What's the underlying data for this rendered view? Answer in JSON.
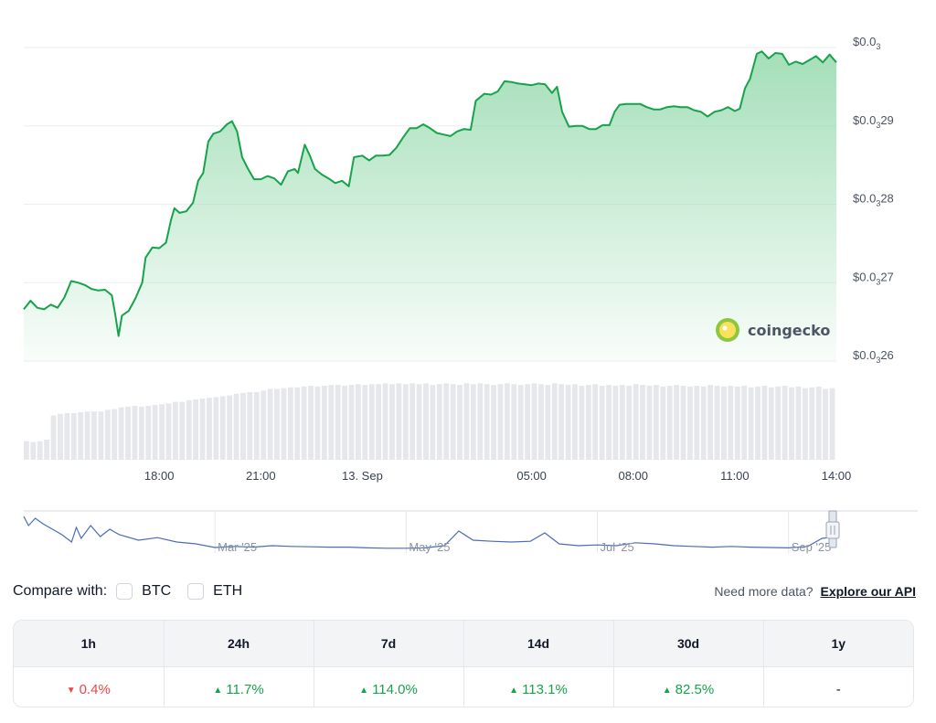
{
  "chart_data": {
    "type": "area",
    "y_ticks": [
      {
        "value": 0.0026,
        "label": "$0.0",
        "zeros": "3",
        "tail": "26"
      },
      {
        "value": 0.0027,
        "label": "$0.0",
        "zeros": "3",
        "tail": "27"
      },
      {
        "value": 0.0028,
        "label": "$0.0",
        "zeros": "3",
        "tail": "28"
      },
      {
        "value": 0.0029,
        "label": "$0.0",
        "zeros": "3",
        "tail": "29"
      },
      {
        "value": 0.003,
        "label": "$0.0",
        "zeros": "3",
        "tail": ""
      }
    ],
    "ylim": [
      0.0026,
      0.003
    ],
    "xlim": [
      0,
      24
    ],
    "x_ticks": [
      {
        "value": 4,
        "label": "18:00"
      },
      {
        "value": 7,
        "label": "21:00"
      },
      {
        "value": 10,
        "label": "13. Sep"
      },
      {
        "value": 15,
        "label": "05:00"
      },
      {
        "value": 18,
        "label": "08:00"
      },
      {
        "value": 21,
        "label": "11:00"
      },
      {
        "value": 24,
        "label": "14:00"
      }
    ],
    "price_series": [
      [
        0.0,
        0.002666
      ],
      [
        0.2,
        0.002677
      ],
      [
        0.4,
        0.002668
      ],
      [
        0.6,
        0.002666
      ],
      [
        0.8,
        0.002672
      ],
      [
        1.0,
        0.002668
      ],
      [
        1.2,
        0.002681
      ],
      [
        1.4,
        0.002702
      ],
      [
        1.6,
        0.0027
      ],
      [
        1.8,
        0.002697
      ],
      [
        2.0,
        0.002692
      ],
      [
        2.2,
        0.00269
      ],
      [
        2.4,
        0.002691
      ],
      [
        2.6,
        0.002684
      ],
      [
        2.7,
        0.00266
      ],
      [
        2.8,
        0.002632
      ],
      [
        2.9,
        0.002658
      ],
      [
        3.1,
        0.002664
      ],
      [
        3.3,
        0.00268
      ],
      [
        3.5,
        0.0027
      ],
      [
        3.6,
        0.002732
      ],
      [
        3.8,
        0.002745
      ],
      [
        4.0,
        0.002744
      ],
      [
        4.2,
        0.002751
      ],
      [
        4.35,
        0.00278
      ],
      [
        4.45,
        0.002795
      ],
      [
        4.6,
        0.002789
      ],
      [
        4.8,
        0.002791
      ],
      [
        5.0,
        0.002802
      ],
      [
        5.15,
        0.00283
      ],
      [
        5.3,
        0.00284
      ],
      [
        5.45,
        0.00288
      ],
      [
        5.6,
        0.00289
      ],
      [
        5.8,
        0.002893
      ],
      [
        6.0,
        0.002902
      ],
      [
        6.15,
        0.002906
      ],
      [
        6.3,
        0.002893
      ],
      [
        6.45,
        0.00286
      ],
      [
        6.6,
        0.002847
      ],
      [
        6.8,
        0.002832
      ],
      [
        7.0,
        0.002832
      ],
      [
        7.2,
        0.002836
      ],
      [
        7.4,
        0.002833
      ],
      [
        7.6,
        0.002825
      ],
      [
        7.8,
        0.002842
      ],
      [
        8.0,
        0.002845
      ],
      [
        8.1,
        0.00284
      ],
      [
        8.3,
        0.002876
      ],
      [
        8.45,
        0.002862
      ],
      [
        8.6,
        0.002845
      ],
      [
        8.8,
        0.002838
      ],
      [
        9.0,
        0.002833
      ],
      [
        9.2,
        0.002827
      ],
      [
        9.4,
        0.00283
      ],
      [
        9.6,
        0.002823
      ],
      [
        9.75,
        0.00286
      ],
      [
        10.0,
        0.002862
      ],
      [
        10.2,
        0.002856
      ],
      [
        10.4,
        0.002862
      ],
      [
        10.6,
        0.002862
      ],
      [
        10.8,
        0.002863
      ],
      [
        11.0,
        0.002872
      ],
      [
        11.2,
        0.002885
      ],
      [
        11.4,
        0.002897
      ],
      [
        11.6,
        0.002897
      ],
      [
        11.8,
        0.002902
      ],
      [
        12.0,
        0.002897
      ],
      [
        12.2,
        0.002891
      ],
      [
        12.4,
        0.002889
      ],
      [
        12.6,
        0.002887
      ],
      [
        12.8,
        0.002893
      ],
      [
        13.0,
        0.002896
      ],
      [
        13.2,
        0.002895
      ],
      [
        13.35,
        0.002932
      ],
      [
        13.6,
        0.002941
      ],
      [
        13.8,
        0.00294
      ],
      [
        14.0,
        0.002944
      ],
      [
        14.2,
        0.002957
      ],
      [
        14.4,
        0.002956
      ],
      [
        14.6,
        0.002954
      ],
      [
        14.8,
        0.002953
      ],
      [
        15.0,
        0.002952
      ],
      [
        15.2,
        0.002954
      ],
      [
        15.4,
        0.002953
      ],
      [
        15.6,
        0.002942
      ],
      [
        15.75,
        0.00295
      ],
      [
        15.9,
        0.002918
      ],
      [
        16.1,
        0.002899
      ],
      [
        16.3,
        0.0029
      ],
      [
        16.5,
        0.0029
      ],
      [
        16.7,
        0.002896
      ],
      [
        16.9,
        0.002896
      ],
      [
        17.1,
        0.002901
      ],
      [
        17.3,
        0.002901
      ],
      [
        17.45,
        0.002918
      ],
      [
        17.6,
        0.002927
      ],
      [
        17.8,
        0.002928
      ],
      [
        18.0,
        0.002928
      ],
      [
        18.2,
        0.002928
      ],
      [
        18.4,
        0.002924
      ],
      [
        18.6,
        0.002921
      ],
      [
        18.8,
        0.002921
      ],
      [
        19.0,
        0.002924
      ],
      [
        19.2,
        0.002925
      ],
      [
        19.4,
        0.002924
      ],
      [
        19.6,
        0.002924
      ],
      [
        19.8,
        0.00292
      ],
      [
        20.0,
        0.002918
      ],
      [
        20.2,
        0.002912
      ],
      [
        20.4,
        0.002918
      ],
      [
        20.6,
        0.00292
      ],
      [
        20.8,
        0.002924
      ],
      [
        21.0,
        0.002919
      ],
      [
        21.15,
        0.002922
      ],
      [
        21.3,
        0.002948
      ],
      [
        21.45,
        0.00296
      ],
      [
        21.65,
        0.002992
      ],
      [
        21.8,
        0.002995
      ],
      [
        22.0,
        0.002986
      ],
      [
        22.2,
        0.002993
      ],
      [
        22.4,
        0.002992
      ],
      [
        22.6,
        0.002978
      ],
      [
        22.8,
        0.002982
      ],
      [
        23.0,
        0.002979
      ],
      [
        23.2,
        0.002984
      ],
      [
        23.4,
        0.002989
      ],
      [
        23.6,
        0.002981
      ],
      [
        23.8,
        0.002991
      ],
      [
        24.0,
        0.002981
      ]
    ],
    "volume_series": [
      0.23,
      0.22,
      0.23,
      0.25,
      0.55,
      0.57,
      0.58,
      0.58,
      0.59,
      0.6,
      0.6,
      0.6,
      0.62,
      0.63,
      0.65,
      0.66,
      0.67,
      0.66,
      0.67,
      0.68,
      0.69,
      0.7,
      0.72,
      0.72,
      0.74,
      0.75,
      0.76,
      0.77,
      0.78,
      0.79,
      0.8,
      0.82,
      0.83,
      0.84,
      0.84,
      0.86,
      0.88,
      0.88,
      0.89,
      0.9,
      0.9,
      0.91,
      0.92,
      0.91,
      0.92,
      0.93,
      0.93,
      0.92,
      0.93,
      0.94,
      0.93,
      0.94,
      0.94,
      0.95,
      0.94,
      0.95,
      0.94,
      0.95,
      0.94,
      0.95,
      0.93,
      0.94,
      0.95,
      0.94,
      0.93,
      0.95,
      0.94,
      0.95,
      0.94,
      0.93,
      0.94,
      0.95,
      0.94,
      0.93,
      0.94,
      0.95,
      0.94,
      0.93,
      0.95,
      0.94,
      0.93,
      0.94,
      0.92,
      0.93,
      0.94,
      0.92,
      0.93,
      0.92,
      0.93,
      0.92,
      0.94,
      0.93,
      0.92,
      0.93,
      0.91,
      0.92,
      0.93,
      0.92,
      0.91,
      0.92,
      0.91,
      0.93,
      0.92,
      0.91,
      0.92,
      0.91,
      0.92,
      0.9,
      0.91,
      0.92,
      0.9,
      0.91,
      0.92,
      0.9,
      0.91,
      0.89,
      0.9,
      0.91,
      0.88,
      0.89
    ],
    "navigator": {
      "labels": [
        {
          "value": 5,
          "label": "Mar '25"
        },
        {
          "value": 7,
          "label": "May '25"
        },
        {
          "value": 9,
          "label": "Jul '25"
        },
        {
          "value": 11,
          "label": "Sep '25"
        }
      ],
      "xlim": [
        3,
        11.5
      ],
      "series": [
        [
          3.0,
          0.9
        ],
        [
          3.05,
          0.65
        ],
        [
          3.12,
          0.85
        ],
        [
          3.2,
          0.7
        ],
        [
          3.3,
          0.55
        ],
        [
          3.4,
          0.4
        ],
        [
          3.5,
          0.2
        ],
        [
          3.55,
          0.6
        ],
        [
          3.6,
          0.3
        ],
        [
          3.7,
          0.65
        ],
        [
          3.8,
          0.35
        ],
        [
          3.9,
          0.55
        ],
        [
          4.0,
          0.4
        ],
        [
          4.2,
          0.25
        ],
        [
          4.4,
          0.32
        ],
        [
          4.6,
          0.2
        ],
        [
          4.8,
          0.15
        ],
        [
          5.0,
          0.05
        ],
        [
          5.2,
          0.08
        ],
        [
          5.4,
          0.06
        ],
        [
          5.6,
          0.1
        ],
        [
          5.8,
          0.08
        ],
        [
          6.0,
          0.07
        ],
        [
          6.2,
          0.06
        ],
        [
          6.4,
          0.06
        ],
        [
          6.6,
          0.04
        ],
        [
          6.8,
          0.03
        ],
        [
          7.0,
          0.03
        ],
        [
          7.2,
          0.04
        ],
        [
          7.4,
          0.1
        ],
        [
          7.55,
          0.5
        ],
        [
          7.7,
          0.25
        ],
        [
          7.9,
          0.22
        ],
        [
          8.1,
          0.2
        ],
        [
          8.3,
          0.22
        ],
        [
          8.45,
          0.45
        ],
        [
          8.6,
          0.15
        ],
        [
          8.8,
          0.1
        ],
        [
          9.0,
          0.12
        ],
        [
          9.2,
          0.1
        ],
        [
          9.4,
          0.18
        ],
        [
          9.6,
          0.15
        ],
        [
          9.8,
          0.1
        ],
        [
          10.0,
          0.08
        ],
        [
          10.2,
          0.06
        ],
        [
          10.4,
          0.08
        ],
        [
          10.6,
          0.06
        ],
        [
          10.8,
          0.05
        ],
        [
          11.0,
          0.04
        ],
        [
          11.2,
          0.08
        ],
        [
          11.35,
          0.3
        ],
        [
          11.45,
          0.33
        ]
      ]
    }
  },
  "watermark": {
    "text": "coingecko"
  },
  "compare": {
    "label": "Compare with:",
    "options": [
      {
        "label": "BTC"
      },
      {
        "label": "ETH"
      }
    ],
    "api_prompt": "Need more data?",
    "api_link": "Explore our API"
  },
  "performance": {
    "headers": [
      "1h",
      "24h",
      "7d",
      "14d",
      "30d",
      "1y"
    ],
    "values": [
      {
        "text": "0.4%",
        "dir": "down"
      },
      {
        "text": "11.7%",
        "dir": "up"
      },
      {
        "text": "114.0%",
        "dir": "up"
      },
      {
        "text": "113.1%",
        "dir": "up"
      },
      {
        "text": "82.5%",
        "dir": "up"
      },
      {
        "text": "-",
        "dir": "neutral"
      }
    ]
  },
  "colors": {
    "line": "#16a34a",
    "fill_top": "#86d4a1",
    "volume": "#e5e7eb",
    "grid": "#eceef1",
    "navigator_line": "#4b6cb7",
    "up": "#16a34a",
    "down": "#ef4444"
  }
}
